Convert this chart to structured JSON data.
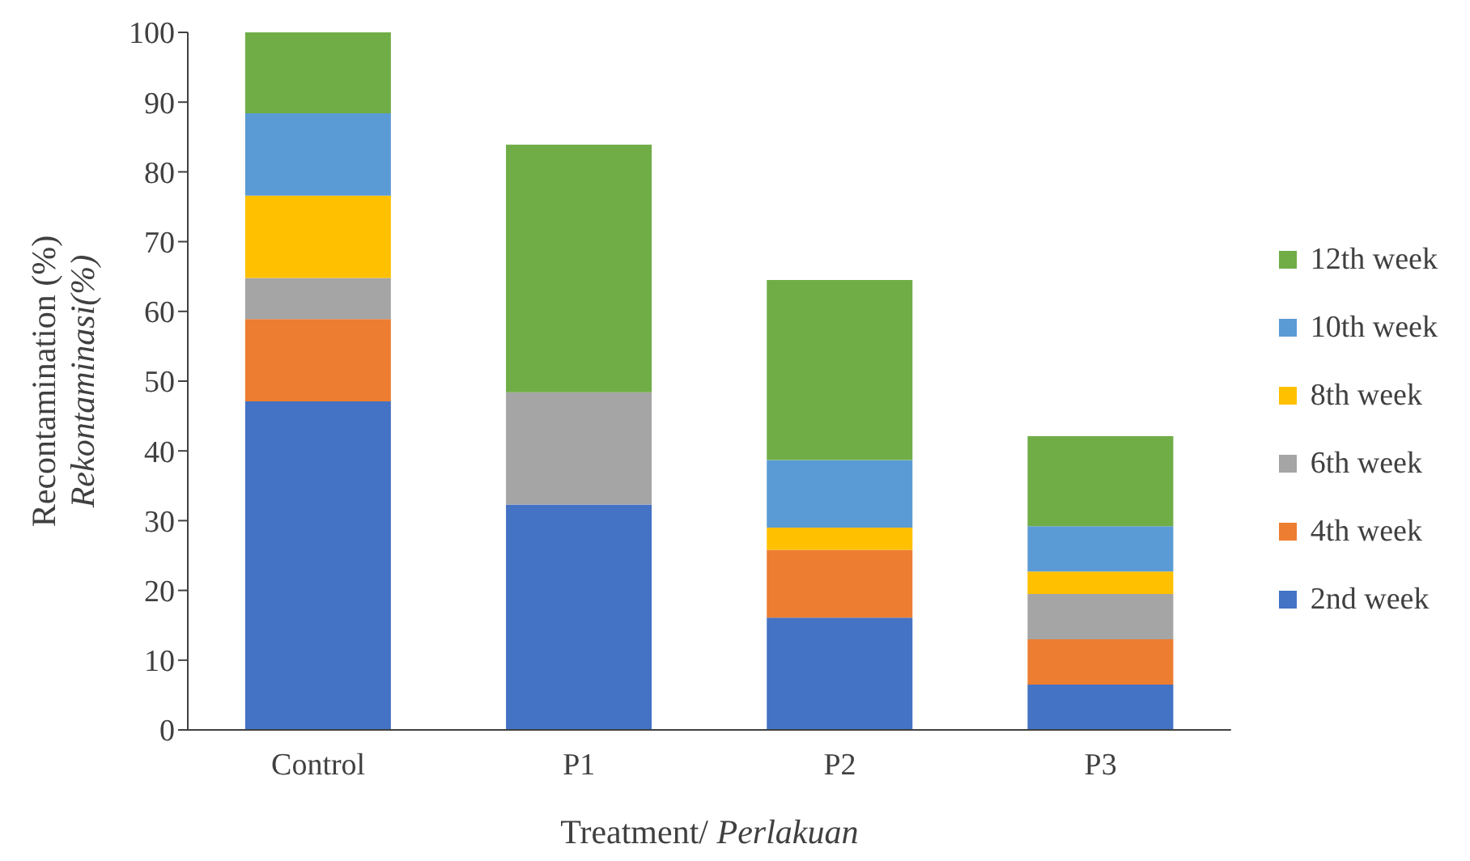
{
  "chart_data": {
    "type": "bar",
    "stacked": true,
    "xlabel": "Treatment/ Perlakuan",
    "ylabel": "Recontamination (%)\nRekontaminasi(%)",
    "categories": [
      "Control",
      "P1",
      "P2",
      "P3"
    ],
    "series": [
      {
        "name": "2nd week",
        "color": "#4472c4",
        "values": [
          47.1,
          32.3,
          16.1,
          6.5
        ]
      },
      {
        "name": "4th week",
        "color": "#ed7d31",
        "values": [
          11.8,
          0,
          9.7,
          6.5
        ]
      },
      {
        "name": "6th week",
        "color": "#a5a5a5",
        "values": [
          5.9,
          16.1,
          0,
          6.5
        ]
      },
      {
        "name": "8th week",
        "color": "#ffc000",
        "values": [
          11.8,
          0,
          3.2,
          3.2
        ]
      },
      {
        "name": "10th week",
        "color": "#5b9bd5",
        "values": [
          11.8,
          0,
          9.7,
          6.5
        ]
      },
      {
        "name": "12th week",
        "color": "#70ad47",
        "values": [
          11.8,
          35.5,
          25.8,
          12.9
        ]
      }
    ],
    "ylim": [
      0,
      100
    ],
    "yticks": [
      0,
      10,
      20,
      30,
      40,
      50,
      60,
      70,
      80,
      90,
      100
    ],
    "grid": false,
    "legend": "right"
  }
}
